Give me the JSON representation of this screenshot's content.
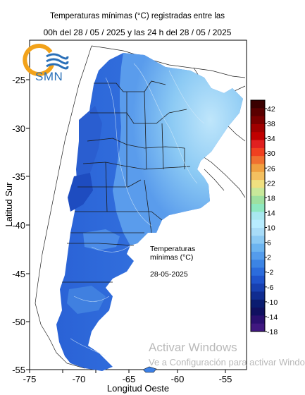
{
  "title_line1": "Temperaturas mínimas (°C) registradas entre las",
  "title_line2": "00h del 28 / 05 / 2025 y las 24 h del 28 / 05 / 2025",
  "logo": {
    "text": "SMN",
    "icon": "smn-sun-waves-logo"
  },
  "axes": {
    "xlabel": "Longitud Oeste",
    "ylabel": "Latitud Sur",
    "xticks": [
      "-75",
      "-70",
      "-65",
      "-60",
      "-55"
    ],
    "yticks": [
      "-25",
      "-30",
      "-35",
      "-40",
      "-45",
      "-50",
      "-55"
    ]
  },
  "annotation": {
    "line1": "Temperaturas",
    "line2": "mínimas (°C)",
    "date": "28-05-2025"
  },
  "colorbar": {
    "labels": [
      "42",
      "38",
      "34",
      "30",
      "26",
      "22",
      "18",
      "14",
      "10",
      "6",
      "2",
      "-2",
      "-6",
      "-10",
      "-14",
      "-18"
    ],
    "colors": [
      "#3a0000",
      "#5a0000",
      "#7a0000",
      "#a00000",
      "#c00000",
      "#e02020",
      "#f04020",
      "#f07030",
      "#f0a040",
      "#f4c060",
      "#f0e080",
      "#c8e89a",
      "#9ee0a0",
      "#8ee8c0",
      "#a8e8f0",
      "#b8ecff",
      "#a8dcf8",
      "#8ccaf4",
      "#6cb4f0",
      "#549cec",
      "#3c84e4",
      "#2c6cdc",
      "#2054cc",
      "#1840b0",
      "#102c90",
      "#0a1c70",
      "#101060",
      "#2a1070",
      "#401880"
    ]
  },
  "watermark": {
    "line1": "Activar Windows",
    "line2": "Ve a Configuración para activar Windows."
  },
  "colors": {
    "cold": "#2054cc",
    "mid": "#4c8ce8",
    "warm": "#a8dcf8"
  }
}
